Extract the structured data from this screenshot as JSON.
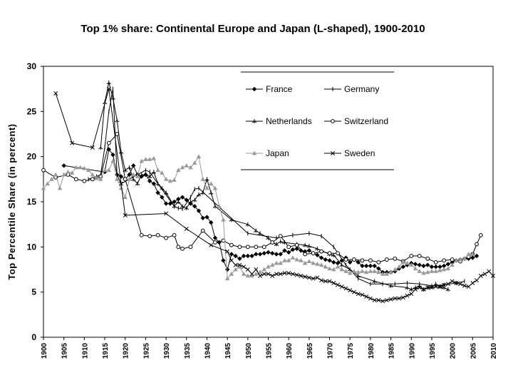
{
  "chart_data": {
    "type": "line",
    "title": "Top 1% share: Continental Europe and Japan (L-shaped), 1900-2010",
    "xlabel": "",
    "ylabel": "Top Percentile Share (in percent)",
    "xlim": [
      1900,
      2010
    ],
    "ylim": [
      0,
      30
    ],
    "x_ticks": [
      "1900",
      "1905",
      "1910",
      "1915",
      "1920",
      "1925",
      "1930",
      "1935",
      "1940",
      "1945",
      "1950",
      "1955",
      "1960",
      "1965",
      "1970",
      "1975",
      "1980",
      "1985",
      "1990",
      "1995",
      "2000",
      "2005",
      "2010"
    ],
    "y_ticks": [
      "0",
      "5",
      "10",
      "15",
      "20",
      "25",
      "30"
    ],
    "legend_position": "top-center",
    "series": [
      {
        "name": "France",
        "color": "#000000",
        "marker": "diamond",
        "x": [
          1905,
          1915,
          1916,
          1917,
          1918,
          1919,
          1920,
          1921,
          1922,
          1923,
          1924,
          1925,
          1926,
          1927,
          1928,
          1929,
          1930,
          1931,
          1932,
          1933,
          1934,
          1935,
          1936,
          1937,
          1938,
          1939,
          1940,
          1941,
          1942,
          1943,
          1944,
          1945,
          1946,
          1947,
          1948,
          1949,
          1950,
          1951,
          1952,
          1953,
          1954,
          1955,
          1956,
          1957,
          1958,
          1959,
          1960,
          1961,
          1962,
          1963,
          1964,
          1965,
          1966,
          1967,
          1968,
          1969,
          1970,
          1971,
          1972,
          1973,
          1974,
          1975,
          1976,
          1977,
          1978,
          1979,
          1980,
          1981,
          1982,
          1983,
          1984,
          1985,
          1986,
          1987,
          1988,
          1989,
          1990,
          1991,
          1992,
          1993,
          1994,
          1995,
          1996,
          1997,
          1998,
          1999,
          2000,
          2001,
          2002,
          2003,
          2004,
          2005,
          2006
        ],
        "y": [
          19,
          18.3,
          20.8,
          20.2,
          18,
          17.8,
          17.5,
          18,
          19,
          18,
          17.8,
          18,
          17.3,
          17,
          16,
          15.5,
          14.8,
          14.8,
          15,
          15.3,
          15.5,
          15.2,
          14.8,
          14.5,
          14,
          13.2,
          13.3,
          12.7,
          11,
          10.5,
          8.5,
          7.5,
          9.2,
          9,
          8.7,
          9,
          9,
          9,
          9.2,
          9.2,
          9.3,
          9.4,
          9.3,
          9.2,
          9.2,
          9.6,
          9.4,
          9.7,
          9.8,
          9.6,
          9.5,
          9.6,
          9.3,
          9.1,
          8.8,
          8.6,
          8.5,
          8.3,
          8.2,
          8.5,
          8.8,
          8.3,
          8.6,
          8.3,
          7.9,
          7.9,
          7.9,
          7.9,
          7.6,
          7.2,
          7.2,
          7.2,
          7.3,
          7.6,
          7.8,
          8,
          8.2,
          8.1,
          8,
          7.9,
          8,
          7.8,
          7.8,
          7.8,
          7.9,
          8.1,
          8.3,
          8.5,
          8.6,
          8.7,
          8.7,
          8.8,
          9
        ]
      },
      {
        "name": "Germany",
        "color": "#000000",
        "marker": "tick",
        "x": [
          1911,
          1913,
          1914,
          1915,
          1916,
          1917,
          1918,
          1919,
          1925,
          1926,
          1928,
          1932,
          1933,
          1934,
          1936,
          1937,
          1938,
          1950,
          1957,
          1961,
          1965,
          1968,
          1971,
          1974,
          1977,
          1980,
          1983,
          1986,
          1989,
          1992,
          1995,
          1998,
          2001,
          2003
        ],
        "y": [
          17.5,
          17.8,
          18,
          21,
          25,
          27.5,
          18,
          17,
          18.5,
          18.3,
          17,
          14.5,
          14.3,
          14.2,
          15.5,
          16.4,
          16.5,
          11.5,
          11,
          11.3,
          11.5,
          11.2,
          10,
          8,
          6.5,
          5.9,
          5.9,
          5.9,
          6,
          5.9,
          5.7,
          5.8,
          6,
          6.2
        ]
      },
      {
        "name": "Netherlands",
        "color": "#000000",
        "marker": "star",
        "x": [
          1914,
          1915,
          1916,
          1917,
          1918,
          1919,
          1920,
          1921,
          1922,
          1923,
          1924,
          1925,
          1926,
          1927,
          1928,
          1929,
          1930,
          1932,
          1933,
          1934,
          1935,
          1936,
          1937,
          1938,
          1939,
          1940,
          1941,
          1942,
          1946,
          1950,
          1952,
          1953,
          1955,
          1956,
          1957,
          1958,
          1959,
          1962,
          1964,
          1965,
          1967,
          1970,
          1971,
          1973,
          1975,
          1977,
          1981,
          1985,
          1989,
          1990,
          1991,
          1992,
          1993,
          1994,
          1995,
          1996,
          1997,
          1998,
          1999
        ],
        "y": [
          21,
          26,
          28.2,
          26.5,
          24,
          20.5,
          18.5,
          18.8,
          17.5,
          17,
          18,
          18,
          17.8,
          18.3,
          17,
          16.5,
          16,
          14.5,
          15,
          14.5,
          14.3,
          15,
          15.2,
          15.8,
          16,
          17.5,
          16,
          14.5,
          13,
          12.5,
          11.8,
          11.5,
          11,
          10.5,
          10.3,
          10.6,
          10.5,
          10.3,
          10.2,
          10.1,
          9.8,
          9.2,
          9.1,
          8,
          7.5,
          6.8,
          6.2,
          5.7,
          5.5,
          5.3,
          5.5,
          5.7,
          5.3,
          5.5,
          5.6,
          5.9,
          5.6,
          5.5,
          5.3
        ]
      },
      {
        "name": "Switzerland",
        "color": "#000000",
        "marker": "circle",
        "x": [
          1900,
          1903,
          1906,
          1908,
          1910,
          1912,
          1914,
          1916,
          1918,
          1920,
          1924,
          1926,
          1928,
          1930,
          1932,
          1933,
          1934,
          1936,
          1939,
          1942,
          1944,
          1946,
          1948,
          1950,
          1952,
          1954,
          1956,
          1958,
          1960,
          1962,
          1964,
          1966,
          1968,
          1970,
          1972,
          1974,
          1976,
          1978,
          1980,
          1982,
          1984,
          1986,
          1988,
          1990,
          1992,
          1994,
          1996,
          1998,
          2000,
          2002,
          2004,
          2005,
          2006,
          2007
        ],
        "y": [
          18.5,
          17.7,
          18,
          17.5,
          17.3,
          17.5,
          17.8,
          21.5,
          22.5,
          17.5,
          11.3,
          11.2,
          11.3,
          11,
          11.3,
          10,
          9.8,
          10,
          11.8,
          10.5,
          10.7,
          10.2,
          10,
          10,
          10,
          10,
          10.5,
          11.2,
          10,
          10.2,
          9.2,
          9.3,
          9.5,
          9.3,
          9.3,
          8.6,
          8.6,
          8.5,
          8.5,
          8.3,
          8.6,
          8.7,
          8.4,
          9,
          9,
          8.7,
          8.3,
          8.5,
          8.6,
          8.4,
          8.9,
          9.2,
          10.3,
          11.3
        ]
      },
      {
        "name": "Japan",
        "color": "#999999",
        "marker": "triangle",
        "x": [
          1900,
          1901,
          1902,
          1903,
          1904,
          1905,
          1906,
          1907,
          1908,
          1909,
          1910,
          1911,
          1912,
          1913,
          1914,
          1915,
          1916,
          1917,
          1918,
          1919,
          1920,
          1921,
          1922,
          1923,
          1924,
          1925,
          1926,
          1927,
          1928,
          1929,
          1930,
          1931,
          1932,
          1933,
          1934,
          1935,
          1936,
          1937,
          1938,
          1939,
          1940,
          1941,
          1942,
          1943,
          1944,
          1945,
          1946,
          1947,
          1948,
          1949,
          1950,
          1951,
          1952,
          1953,
          1954,
          1955,
          1956,
          1957,
          1958,
          1959,
          1960,
          1961,
          1962,
          1963,
          1964,
          1965,
          1966,
          1967,
          1968,
          1969,
          1970,
          1971,
          1972,
          1973,
          1974,
          1975,
          1976,
          1977,
          1978,
          1979,
          1980,
          1981,
          1982,
          1983,
          1984,
          1985,
          1986,
          1987,
          1988,
          1989,
          1990,
          1991,
          1992,
          1993,
          1994,
          1995,
          1996,
          1997,
          1998,
          1999,
          2000,
          2001,
          2002,
          2003,
          2004,
          2005
        ],
        "y": [
          16.5,
          17,
          17.5,
          18,
          16.5,
          18,
          18.3,
          18.2,
          18.8,
          18.8,
          18.7,
          18.5,
          18,
          17.6,
          17.5,
          18.5,
          18.5,
          19.5,
          17.5,
          16.5,
          15.5,
          17.5,
          18,
          17.8,
          19.5,
          19.7,
          19.7,
          19.8,
          18.5,
          18.2,
          17.5,
          17.3,
          17.4,
          18.5,
          18.8,
          19,
          18.8,
          19.3,
          20,
          17.5,
          16.5,
          17,
          16.5,
          14.5,
          13,
          6.5,
          7,
          7.5,
          7.8,
          7,
          6.8,
          6.8,
          7,
          7.2,
          7.5,
          7.8,
          8,
          8.2,
          8.2,
          8.5,
          8.5,
          8.8,
          8.6,
          8.5,
          8.2,
          8.4,
          8.2,
          8.1,
          8,
          7.8,
          7.6,
          7.5,
          7.8,
          7.5,
          7.3,
          7.1,
          7.3,
          7.2,
          7.3,
          7.2,
          7.3,
          7.3,
          7.2,
          7,
          7,
          7.2,
          7.5,
          7.8,
          8.3,
          8.2,
          8,
          7.6,
          7.3,
          7.1,
          7.2,
          7.3,
          7.3,
          7.4,
          7.5,
          7.6,
          8,
          8.5,
          8.6,
          8.7,
          9.2,
          9.2
        ]
      },
      {
        "name": "Sweden",
        "color": "#000000",
        "marker": "x",
        "x": [
          1903,
          1907,
          1912,
          1916,
          1919,
          1920,
          1930,
          1935,
          1941,
          1945,
          1946,
          1947,
          1948,
          1949,
          1950,
          1951,
          1952,
          1953,
          1954,
          1955,
          1956,
          1957,
          1958,
          1959,
          1960,
          1961,
          1962,
          1963,
          1964,
          1965,
          1966,
          1967,
          1968,
          1969,
          1970,
          1971,
          1972,
          1973,
          1974,
          1975,
          1976,
          1977,
          1978,
          1979,
          1980,
          1981,
          1982,
          1983,
          1984,
          1985,
          1986,
          1987,
          1988,
          1989,
          1990,
          1991,
          1992,
          1993,
          1994,
          1995,
          1996,
          1997,
          1998,
          1999,
          2000,
          2001,
          2002,
          2003,
          2004,
          2005,
          2006,
          2007,
          2008,
          2009,
          2010
        ],
        "y": [
          27,
          21.5,
          21,
          27.5,
          17,
          13.5,
          13.7,
          12,
          10.2,
          9.5,
          8.5,
          8,
          8,
          7.8,
          7.5,
          7,
          7.5,
          6.8,
          7,
          7,
          6.8,
          7,
          7,
          7.1,
          7.1,
          7,
          6.9,
          6.8,
          6.7,
          6.6,
          6.5,
          6.6,
          6.3,
          6.2,
          6.2,
          6,
          5.8,
          5.6,
          5.4,
          5.2,
          5,
          4.8,
          4.7,
          4.5,
          4.3,
          4.1,
          4.1,
          4,
          4.1,
          4.2,
          4.3,
          4.3,
          4.4,
          4.6,
          4.8,
          5.3,
          5.5,
          5.3,
          5.5,
          5.5,
          5.6,
          5.6,
          5.8,
          5.9,
          6.2,
          6,
          5.9,
          5.7,
          5.6,
          6,
          6.3,
          6.8,
          7,
          7.3,
          6.8
        ]
      }
    ]
  }
}
